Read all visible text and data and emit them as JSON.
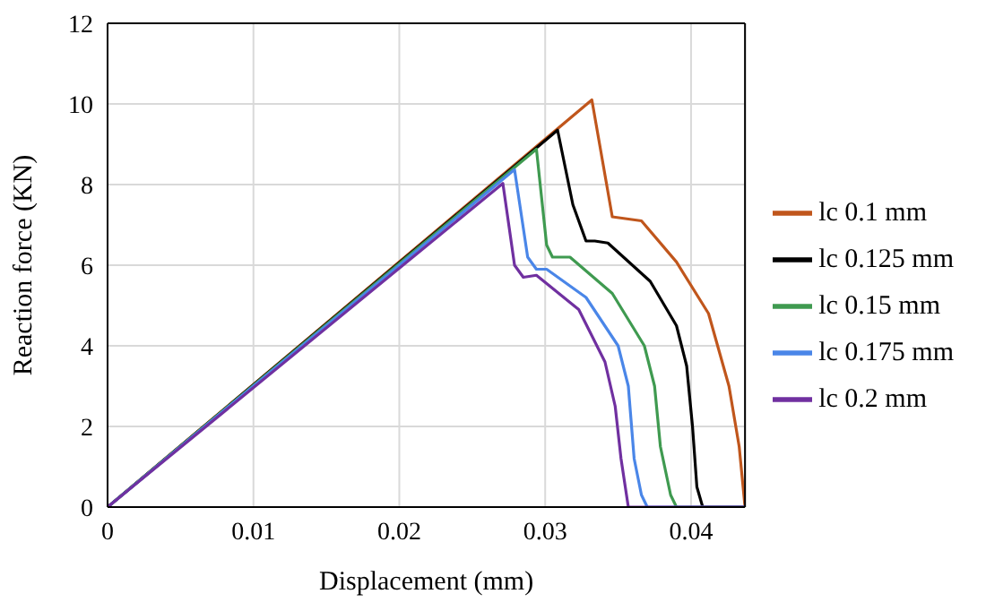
{
  "chart_data": {
    "type": "line",
    "xlabel": "Displacement (mm)",
    "ylabel": "Reaction force (KN)",
    "xlim": [
      0,
      0.0437
    ],
    "xticks": [
      0,
      0.01,
      0.02,
      0.03,
      0.04
    ],
    "ylim": [
      0,
      12
    ],
    "yticks": [
      0,
      2,
      4,
      6,
      8,
      10,
      12
    ],
    "grid": true,
    "legend": "right",
    "marker": "none",
    "line_style": "solid",
    "series": [
      {
        "name": "lc 0.1 mm",
        "color": "#c0561c",
        "x": [
          0,
          0.0332,
          0.0346,
          0.0366,
          0.039,
          0.0412,
          0.0426,
          0.0433,
          0.0437
        ],
        "values": [
          0,
          10.1,
          7.2,
          7.1,
          6.08,
          4.8,
          3.0,
          1.5,
          0
        ]
      },
      {
        "name": "lc 0.125 mm",
        "color": "#000000",
        "x": [
          0,
          0.03085,
          0.0319,
          0.0328,
          0.0334,
          0.0343,
          0.0372,
          0.039,
          0.0397,
          0.0401,
          0.0404,
          0.0408,
          0.0437
        ],
        "values": [
          0,
          9.35,
          7.5,
          6.6,
          6.6,
          6.55,
          5.6,
          4.5,
          3.5,
          2,
          0.5,
          0,
          0
        ]
      },
      {
        "name": "lc 0.15 mm",
        "color": "#3f9a50",
        "x": [
          0,
          0.0294,
          0.0301,
          0.0305,
          0.0317,
          0.0346,
          0.0368,
          0.0375,
          0.0379,
          0.0386,
          0.039,
          0.0437
        ],
        "values": [
          0,
          8.88,
          6.5,
          6.2,
          6.2,
          5.3,
          4.0,
          3.0,
          1.5,
          0.3,
          0,
          0
        ]
      },
      {
        "name": "lc 0.175 mm",
        "color": "#4a86e8",
        "x": [
          0,
          0.0279,
          0.0288,
          0.0294,
          0.0301,
          0.0328,
          0.035,
          0.0357,
          0.0361,
          0.0366,
          0.037,
          0.0437
        ],
        "values": [
          0,
          8.37,
          6.2,
          5.9,
          5.9,
          5.2,
          4.0,
          3.0,
          1.2,
          0.3,
          0,
          0
        ]
      },
      {
        "name": "lc 0.2 mm",
        "color": "#7030a0",
        "x": [
          0,
          0.0271,
          0.0279,
          0.0285,
          0.0294,
          0.0323,
          0.0341,
          0.0348,
          0.0352,
          0.0357,
          0.0437
        ],
        "values": [
          0,
          8.03,
          6.0,
          5.7,
          5.75,
          4.9,
          3.6,
          2.5,
          1.2,
          0,
          0
        ]
      }
    ]
  }
}
